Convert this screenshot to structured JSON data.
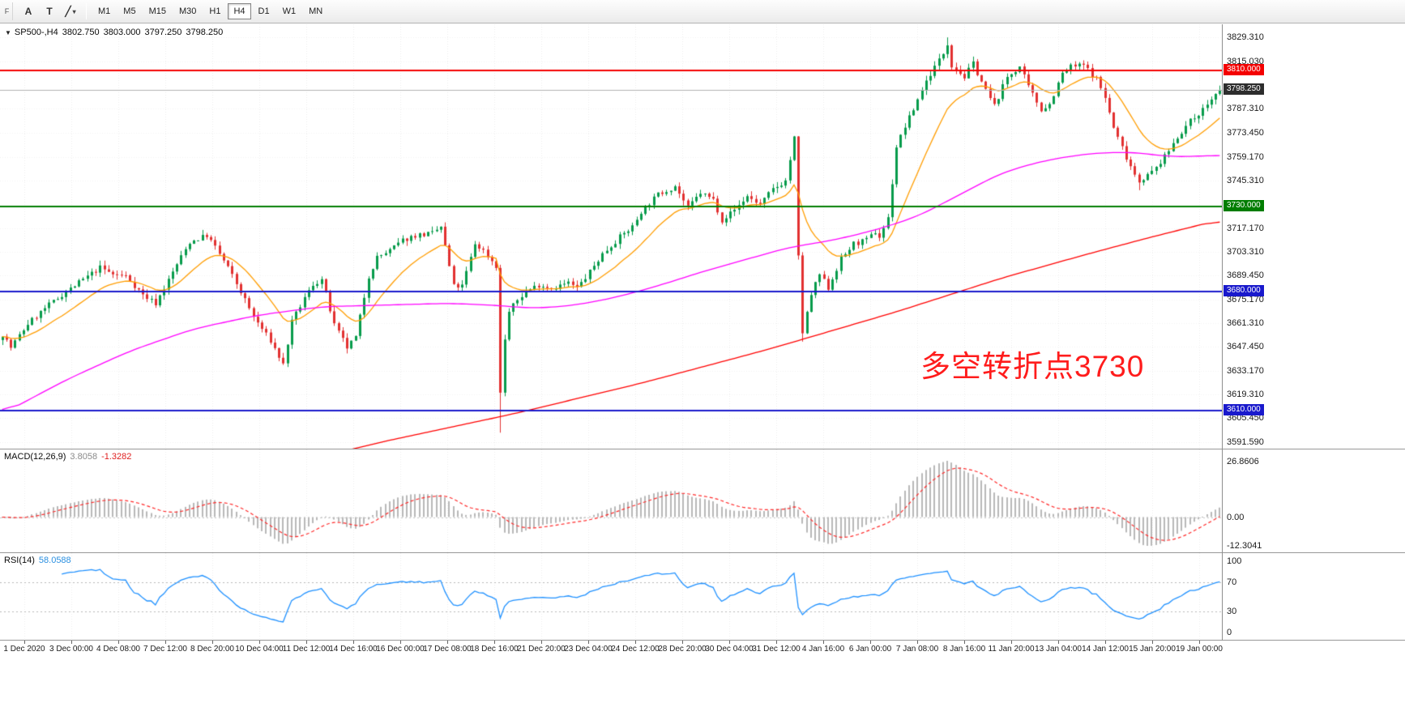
{
  "toolbar": {
    "handle": "F",
    "tools": [
      {
        "name": "annotation-tool",
        "label": "A"
      },
      {
        "name": "text-tool",
        "label": "T"
      },
      {
        "name": "draw-tools",
        "label": "╱",
        "dropdown": "▾"
      }
    ],
    "timeframes": [
      "M1",
      "M5",
      "M15",
      "M30",
      "H1",
      "H4",
      "D1",
      "W1",
      "MN"
    ],
    "active_timeframe": "H4"
  },
  "chart": {
    "title": {
      "collapse_icon": "▼",
      "symbol_period": "SP500-,H4",
      "open": "3802.750",
      "high": "3803.000",
      "low": "3797.250",
      "close": "3798.250"
    },
    "annotation": {
      "text": "多空转折点3730",
      "color": "#ff1c1c"
    },
    "price_axis": {
      "max": 3837.0,
      "min": 3587.6,
      "labels": [
        "3829.310",
        "3815.030",
        "3787.310",
        "3773.450",
        "3759.170",
        "3745.310",
        "3717.170",
        "3703.310",
        "3689.450",
        "3675.170",
        "3661.310",
        "3647.450",
        "3633.170",
        "3619.310",
        "3605.450",
        "3591.590"
      ]
    },
    "hlines": [
      {
        "value": 3810.0,
        "label": "3810.000",
        "color": "#f40000"
      },
      {
        "value": 3730.0,
        "label": "3730.000",
        "color": "#007d00"
      },
      {
        "value": 3680.0,
        "label": "3680.000",
        "color": "#1919cc"
      },
      {
        "value": 3610.0,
        "label": "3610.000",
        "color": "#1919cc"
      }
    ],
    "bid": {
      "value": 3798.25,
      "label": "3798.250",
      "box_color": "#2d2d2d",
      "line_color": "#b0b0b0"
    }
  },
  "macd": {
    "label": "MACD(12,26,9)",
    "main_value": "3.8058",
    "signal_value": "-1.3282",
    "axis_labels": [
      "26.8606",
      "0.00",
      "-12.3041"
    ]
  },
  "rsi": {
    "label": "RSI(14)",
    "value": "58.0588",
    "axis_labels": [
      "100",
      "70",
      "30",
      "0"
    ],
    "levels": [
      70,
      30
    ]
  },
  "time_axis": {
    "labels": [
      "1 Dec 2020",
      "3 Dec 00:00",
      "4 Dec 08:00",
      "7 Dec 12:00",
      "8 Dec 20:00",
      "10 Dec 04:00",
      "11 Dec 12:00",
      "14 Dec 16:00",
      "16 Dec 00:00",
      "17 Dec 08:00",
      "18 Dec 16:00",
      "21 Dec 20:00",
      "23 Dec 04:00",
      "24 Dec 12:00",
      "28 Dec 20:00",
      "30 Dec 04:00",
      "31 Dec 12:00",
      "4 Jan 16:00",
      "6 Jan 00:00",
      "7 Jan 08:00",
      "8 Jan 16:00",
      "11 Jan 20:00",
      "13 Jan 04:00",
      "14 Jan 12:00",
      "15 Jan 20:00",
      "19 Jan 00:00"
    ]
  },
  "chart_data": {
    "type": "candlestick",
    "symbol": "SP500-",
    "timeframe": "H4",
    "ohlc_current": {
      "open": 3802.75,
      "high": 3803.0,
      "low": 3797.25,
      "close": 3798.25
    },
    "bars": 287,
    "seed": 7,
    "noise": 3.2,
    "wick": 3.0,
    "up_color": "#079b4b",
    "down_color": "#e23030",
    "price_anchors": [
      [
        0,
        3655
      ],
      [
        2,
        3647
      ],
      [
        6,
        3661
      ],
      [
        10,
        3670
      ],
      [
        14,
        3678
      ],
      [
        19,
        3687
      ],
      [
        23,
        3694
      ],
      [
        26,
        3690
      ],
      [
        29,
        3689
      ],
      [
        33,
        3678
      ],
      [
        36,
        3673
      ],
      [
        38,
        3682
      ],
      [
        41,
        3696
      ],
      [
        44,
        3709
      ],
      [
        48,
        3713
      ],
      [
        50,
        3706
      ],
      [
        53,
        3694
      ],
      [
        57,
        3675
      ],
      [
        59,
        3665
      ],
      [
        63,
        3651
      ],
      [
        66,
        3637
      ],
      [
        68,
        3662
      ],
      [
        71,
        3676
      ],
      [
        73,
        3684
      ],
      [
        75,
        3687
      ],
      [
        78,
        3660
      ],
      [
        81,
        3647
      ],
      [
        83,
        3653
      ],
      [
        86,
        3689
      ],
      [
        88,
        3700
      ],
      [
        91,
        3704
      ],
      [
        94,
        3710
      ],
      [
        97,
        3713
      ],
      [
        101,
        3714
      ],
      [
        103,
        3718
      ],
      [
        106,
        3683
      ],
      [
        108,
        3683
      ],
      [
        111,
        3708
      ],
      [
        113,
        3704
      ],
      [
        116,
        3695
      ],
      [
        117,
        3620
      ],
      [
        118,
        3652
      ],
      [
        119,
        3668
      ],
      [
        121,
        3675
      ],
      [
        123,
        3680
      ],
      [
        126,
        3684
      ],
      [
        129,
        3682
      ],
      [
        133,
        3685
      ],
      [
        135,
        3682
      ],
      [
        137,
        3688
      ],
      [
        141,
        3702
      ],
      [
        145,
        3712
      ],
      [
        148,
        3718
      ],
      [
        150,
        3727
      ],
      [
        154,
        3737
      ],
      [
        158,
        3742
      ],
      [
        161,
        3729
      ],
      [
        164,
        3738
      ],
      [
        167,
        3734
      ],
      [
        169,
        3722
      ],
      [
        172,
        3728
      ],
      [
        175,
        3736
      ],
      [
        178,
        3731
      ],
      [
        181,
        3740
      ],
      [
        184,
        3745
      ],
      [
        186,
        3770
      ],
      [
        187,
        3700
      ],
      [
        188,
        3656
      ],
      [
        190,
        3678
      ],
      [
        192,
        3690
      ],
      [
        194,
        3682
      ],
      [
        197,
        3699
      ],
      [
        200,
        3708
      ],
      [
        203,
        3710
      ],
      [
        205,
        3715
      ],
      [
        206,
        3712
      ],
      [
        208,
        3723
      ],
      [
        210,
        3765
      ],
      [
        212,
        3777
      ],
      [
        214,
        3787
      ],
      [
        216,
        3799
      ],
      [
        218,
        3808
      ],
      [
        221,
        3820
      ],
      [
        222,
        3826
      ],
      [
        223,
        3813
      ],
      [
        226,
        3806
      ],
      [
        228,
        3814
      ],
      [
        231,
        3798
      ],
      [
        233,
        3789
      ],
      [
        236,
        3806
      ],
      [
        239,
        3812
      ],
      [
        241,
        3800
      ],
      [
        244,
        3787
      ],
      [
        246,
        3790
      ],
      [
        249,
        3808
      ],
      [
        251,
        3812
      ],
      [
        254,
        3813
      ],
      [
        257,
        3805
      ],
      [
        259,
        3794
      ],
      [
        261,
        3776
      ],
      [
        264,
        3759
      ],
      [
        266,
        3749
      ],
      [
        267,
        3745
      ],
      [
        270,
        3750
      ],
      [
        273,
        3759
      ],
      [
        276,
        3771
      ],
      [
        279,
        3780
      ],
      [
        282,
        3787
      ],
      [
        284,
        3793
      ],
      [
        286,
        3798.25
      ]
    ],
    "spikes": {
      "117": {
        "low": 3597.0
      },
      "188": {
        "low": 3650.5
      },
      "222": {
        "high": 3829.3
      },
      "267": {
        "low": 3739.5
      }
    },
    "ma_fast": {
      "type": "ema",
      "period": 16,
      "color": "#ff9d00"
    },
    "ma_mid": {
      "color": "#ff00ff",
      "anchors": [
        [
          0,
          3608
        ],
        [
          15,
          3628
        ],
        [
          30,
          3645
        ],
        [
          45,
          3658
        ],
        [
          60,
          3666
        ],
        [
          75,
          3671
        ],
        [
          90,
          3672
        ],
        [
          105,
          3673
        ],
        [
          115,
          3672
        ],
        [
          125,
          3670
        ],
        [
          135,
          3672
        ],
        [
          145,
          3677
        ],
        [
          155,
          3684
        ],
        [
          165,
          3692
        ],
        [
          175,
          3699
        ],
        [
          185,
          3706
        ],
        [
          195,
          3710
        ],
        [
          205,
          3716
        ],
        [
          215,
          3724
        ],
        [
          225,
          3737
        ],
        [
          235,
          3750
        ],
        [
          245,
          3757
        ],
        [
          255,
          3761
        ],
        [
          265,
          3762
        ],
        [
          275,
          3759
        ],
        [
          286,
          3760
        ]
      ]
    },
    "ma_slow": {
      "color": "#ff0000",
      "anchors": [
        [
          0,
          3538
        ],
        [
          30,
          3556
        ],
        [
          60,
          3574
        ],
        [
          90,
          3592
        ],
        [
          120,
          3608
        ],
        [
          150,
          3626
        ],
        [
          180,
          3646
        ],
        [
          210,
          3668
        ],
        [
          235,
          3688
        ],
        [
          255,
          3702
        ],
        [
          270,
          3712
        ],
        [
          286,
          3722
        ]
      ]
    },
    "macd_params": {
      "fast": 12,
      "slow": 26,
      "signal": 9,
      "hist_color": "#b8b8b8",
      "signal_color": "#ff2a2a"
    },
    "rsi_params": {
      "period": 14,
      "color": "#1e90ff"
    }
  }
}
